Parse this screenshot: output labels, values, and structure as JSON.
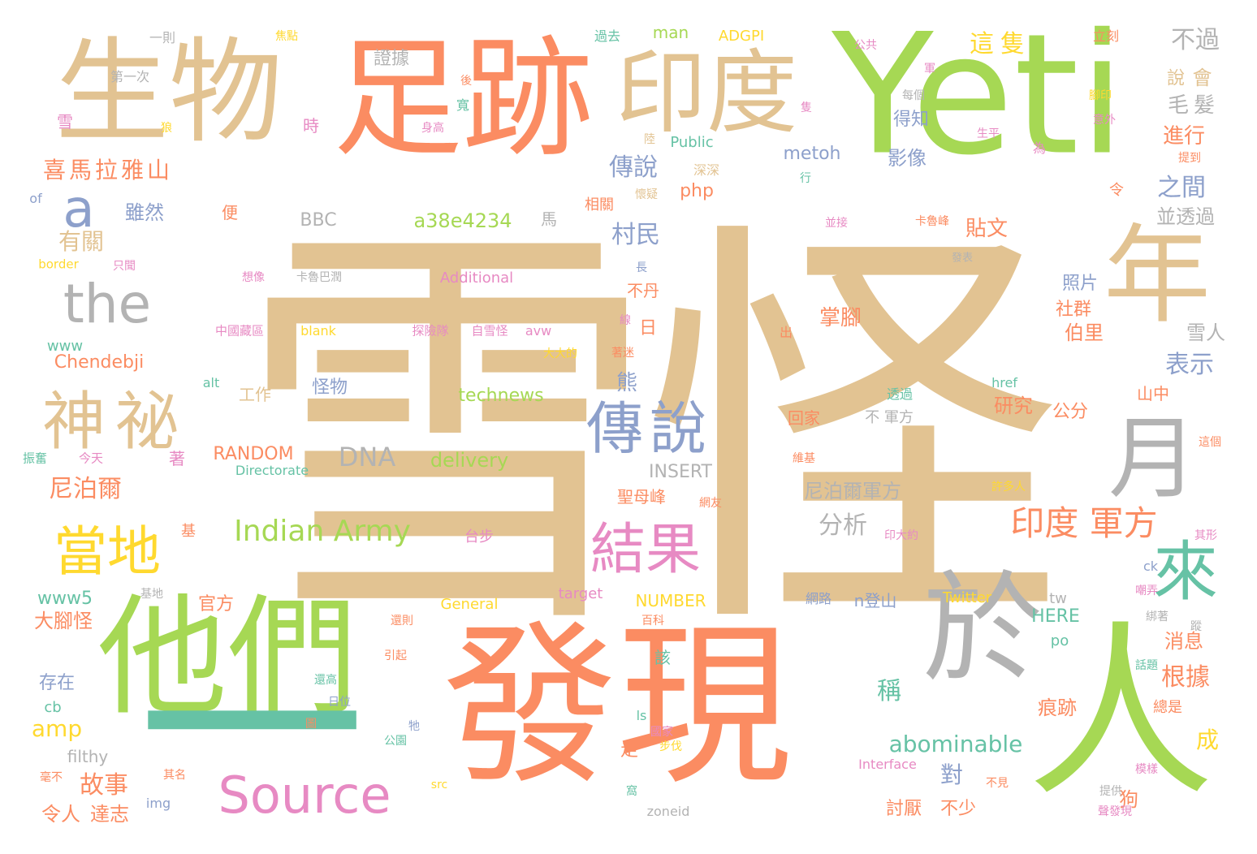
{
  "colors": {
    "tan": "#e2c392",
    "orange": "#fb8c62",
    "green": "#a6d854",
    "blue": "#8da0cb",
    "gray": "#b3b3b3",
    "pink": "#e78ac3",
    "teal": "#66c2a5",
    "yellow": "#ffd92f"
  },
  "words": [
    {
      "t": "雪怪",
      "c": "tan"
    },
    {
      "t": "Yeti",
      "c": "green"
    },
    {
      "t": "發現",
      "c": "orange"
    },
    {
      "t": "足跡",
      "c": "orange"
    },
    {
      "t": "生物",
      "c": "tan"
    },
    {
      "t": "他們",
      "c": "green"
    },
    {
      "t": "印度",
      "c": "tan"
    },
    {
      "t": "人",
      "c": "green"
    },
    {
      "t": "於",
      "c": "gray"
    },
    {
      "t": "年",
      "c": "tan"
    },
    {
      "t": "月",
      "c": "gray"
    },
    {
      "t": "一",
      "c": "teal"
    },
    {
      "t": "神祕",
      "c": "tan"
    },
    {
      "t": "傳說",
      "c": "blue"
    },
    {
      "t": "結果",
      "c": "pink"
    },
    {
      "t": "當地",
      "c": "yellow"
    },
    {
      "t": "Source",
      "c": "pink"
    },
    {
      "t": "the",
      "c": "gray"
    },
    {
      "t": "來",
      "c": "teal"
    },
    {
      "t": "a",
      "c": "blue"
    },
    {
      "t": "印度 軍方",
      "c": "orange"
    },
    {
      "t": "Indian Army",
      "c": "green"
    },
    {
      "t": "喜馬拉雅山",
      "c": "orange"
    },
    {
      "t": "DNA",
      "c": "gray"
    },
    {
      "t": "abominable",
      "c": "teal"
    },
    {
      "t": "證據",
      "c": "gray"
    },
    {
      "t": "這隻",
      "c": "yellow"
    },
    {
      "t": "不過",
      "c": "gray"
    },
    {
      "t": "會",
      "c": "tan"
    },
    {
      "t": "說",
      "c": "tan"
    },
    {
      "t": "毛髮",
      "c": "gray"
    },
    {
      "t": "進行",
      "c": "orange"
    },
    {
      "t": "之間",
      "c": "blue"
    },
    {
      "t": "並透過",
      "c": "gray"
    },
    {
      "t": "貼文",
      "c": "orange"
    },
    {
      "t": "照片",
      "c": "blue"
    },
    {
      "t": "社群",
      "c": "orange"
    },
    {
      "t": "伯里",
      "c": "orange"
    },
    {
      "t": "雪人",
      "c": "gray"
    },
    {
      "t": "表示",
      "c": "blue"
    },
    {
      "t": "研究",
      "c": "orange"
    },
    {
      "t": "公分",
      "c": "orange"
    },
    {
      "t": "山中",
      "c": "orange"
    },
    {
      "t": "尼泊爾軍方",
      "c": "gray"
    },
    {
      "t": "分析",
      "c": "gray"
    },
    {
      "t": "根據",
      "c": "orange"
    },
    {
      "t": "痕跡",
      "c": "orange"
    },
    {
      "t": "消息",
      "c": "orange"
    },
    {
      "t": "稱",
      "c": "teal"
    },
    {
      "t": "對",
      "c": "blue"
    },
    {
      "t": "討厭",
      "c": "orange"
    },
    {
      "t": "不少",
      "c": "orange"
    },
    {
      "t": "狗",
      "c": "orange"
    },
    {
      "t": "成",
      "c": "yellow"
    },
    {
      "t": "故事",
      "c": "orange"
    },
    {
      "t": "令人",
      "c": "orange"
    },
    {
      "t": "達志",
      "c": "orange"
    },
    {
      "t": "大腳怪",
      "c": "orange"
    },
    {
      "t": "存在",
      "c": "blue"
    },
    {
      "t": "官方",
      "c": "orange"
    },
    {
      "t": "尼泊爾",
      "c": "orange"
    },
    {
      "t": "有關",
      "c": "tan"
    },
    {
      "t": "雖然",
      "c": "blue"
    },
    {
      "t": "村民",
      "c": "blue"
    },
    {
      "t": "傳說",
      "c": "blue"
    },
    {
      "t": "影像",
      "c": "blue"
    },
    {
      "t": "得知",
      "c": "blue"
    },
    {
      "t": "metoh",
      "c": "blue"
    },
    {
      "t": "php",
      "c": "orange"
    },
    {
      "t": "a38e4234",
      "c": "green"
    },
    {
      "t": "BBC",
      "c": "gray"
    },
    {
      "t": "technews",
      "c": "green"
    },
    {
      "t": "delivery",
      "c": "green"
    },
    {
      "t": "INSERT",
      "c": "gray"
    },
    {
      "t": "RANDOM",
      "c": "orange"
    },
    {
      "t": "Directorate",
      "c": "teal"
    },
    {
      "t": "Chendebji",
      "c": "orange"
    },
    {
      "t": "www",
      "c": "teal"
    },
    {
      "t": "www5",
      "c": "teal"
    },
    {
      "t": "amp",
      "c": "yellow"
    },
    {
      "t": "cb",
      "c": "teal"
    },
    {
      "t": "filthy",
      "c": "gray"
    },
    {
      "t": "img",
      "c": "blue"
    },
    {
      "t": "man",
      "c": "green"
    },
    {
      "t": "ADGPI",
      "c": "yellow"
    },
    {
      "t": "Public",
      "c": "teal"
    },
    {
      "t": "Additional",
      "c": "pink"
    },
    {
      "t": "General",
      "c": "yellow"
    },
    {
      "t": "target",
      "c": "pink"
    },
    {
      "t": "NUMBER",
      "c": "yellow"
    },
    {
      "t": "Twitter",
      "c": "yellow"
    },
    {
      "t": "HERE",
      "c": "teal"
    },
    {
      "t": "tw",
      "c": "gray"
    },
    {
      "t": "po",
      "c": "teal"
    },
    {
      "t": "ck",
      "c": "blue"
    },
    {
      "t": "Interface",
      "c": "pink"
    },
    {
      "t": "zoneid",
      "c": "gray"
    },
    {
      "t": "src",
      "c": "yellow"
    },
    {
      "t": "href",
      "c": "teal"
    },
    {
      "t": "blank",
      "c": "yellow"
    },
    {
      "t": "avw",
      "c": "pink"
    },
    {
      "t": "alt",
      "c": "teal"
    },
    {
      "t": "border",
      "c": "yellow"
    },
    {
      "t": "of",
      "c": "blue"
    },
    {
      "t": "ls",
      "c": "teal"
    },
    {
      "t": "掌腳",
      "c": "orange"
    },
    {
      "t": "不丹",
      "c": "orange"
    },
    {
      "t": "日",
      "c": "orange"
    },
    {
      "t": "熊",
      "c": "blue"
    },
    {
      "t": "怪物",
      "c": "blue"
    },
    {
      "t": "工作",
      "c": "tan"
    },
    {
      "t": "著",
      "c": "pink"
    },
    {
      "t": "基",
      "c": "orange"
    },
    {
      "t": "便",
      "c": "orange"
    },
    {
      "t": "馬",
      "c": "gray"
    },
    {
      "t": "相關",
      "c": "orange"
    },
    {
      "t": "時",
      "c": "pink"
    },
    {
      "t": "雪",
      "c": "pink"
    },
    {
      "t": "第一次",
      "c": "gray"
    },
    {
      "t": "一則",
      "c": "gray"
    },
    {
      "t": "焦點",
      "c": "yellow"
    },
    {
      "t": "過去",
      "c": "teal"
    },
    {
      "t": "公共",
      "c": "pink"
    },
    {
      "t": "立刻",
      "c": "orange"
    },
    {
      "t": "軍",
      "c": "pink"
    },
    {
      "t": "每個",
      "c": "gray"
    },
    {
      "t": "腳印",
      "c": "yellow"
    },
    {
      "t": "意外",
      "c": "pink"
    },
    {
      "t": "生平",
      "c": "pink"
    },
    {
      "t": "為",
      "c": "pink"
    },
    {
      "t": "提到",
      "c": "orange"
    },
    {
      "t": "令",
      "c": "orange"
    },
    {
      "t": "卡魯峰",
      "c": "orange"
    },
    {
      "t": "發表",
      "c": "gray"
    },
    {
      "t": "並接",
      "c": "pink"
    },
    {
      "t": "行",
      "c": "teal"
    },
    {
      "t": "深深",
      "c": "tan"
    },
    {
      "t": "懷疑",
      "c": "tan"
    },
    {
      "t": "陸",
      "c": "tan"
    },
    {
      "t": "隻",
      "c": "pink"
    },
    {
      "t": "身高",
      "c": "pink"
    },
    {
      "t": "寬",
      "c": "teal"
    },
    {
      "t": "後",
      "c": "orange"
    },
    {
      "t": "狼",
      "c": "yellow"
    },
    {
      "t": "長",
      "c": "blue"
    },
    {
      "t": "線",
      "c": "pink"
    },
    {
      "t": "出",
      "c": "orange"
    },
    {
      "t": "著迷",
      "c": "orange"
    },
    {
      "t": "大大的",
      "c": "yellow"
    },
    {
      "t": "自雪怪",
      "c": "pink"
    },
    {
      "t": "探險隊",
      "c": "pink"
    },
    {
      "t": "中國藏區",
      "c": "pink"
    },
    {
      "t": "想像",
      "c": "pink"
    },
    {
      "t": "卡魯巴潤",
      "c": "gray"
    },
    {
      "t": "只聞",
      "c": "pink"
    },
    {
      "t": "振奮",
      "c": "teal"
    },
    {
      "t": "今天",
      "c": "pink"
    },
    {
      "t": "聖母峰",
      "c": "orange"
    },
    {
      "t": "網友",
      "c": "orange"
    },
    {
      "t": "台步",
      "c": "pink"
    },
    {
      "t": "印大約",
      "c": "pink"
    },
    {
      "t": "其形",
      "c": "pink"
    },
    {
      "t": "嘲弄",
      "c": "pink"
    },
    {
      "t": "網路",
      "c": "blue"
    },
    {
      "t": "n登山",
      "c": "blue"
    },
    {
      "t": "基地",
      "c": "gray"
    },
    {
      "t": "還則",
      "c": "orange"
    },
    {
      "t": "百科",
      "c": "orange"
    },
    {
      "t": "引起",
      "c": "orange"
    },
    {
      "t": "還高",
      "c": "teal"
    },
    {
      "t": "日位",
      "c": "blue"
    },
    {
      "t": "介",
      "c": "orange"
    },
    {
      "t": "圖",
      "c": "orange"
    },
    {
      "t": "牠",
      "c": "blue"
    },
    {
      "t": "國家",
      "c": "pink"
    },
    {
      "t": "公園",
      "c": "teal"
    },
    {
      "t": "步伐",
      "c": "yellow"
    },
    {
      "t": "毫不",
      "c": "orange"
    },
    {
      "t": "其名",
      "c": "orange"
    },
    {
      "t": "窩",
      "c": "teal"
    },
    {
      "t": "提供",
      "c": "gray"
    },
    {
      "t": "聲發現",
      "c": "pink"
    },
    {
      "t": "不見",
      "c": "orange"
    },
    {
      "t": "模樣",
      "c": "pink"
    },
    {
      "t": "蹤",
      "c": "gray"
    },
    {
      "t": "總是",
      "c": "orange"
    },
    {
      "t": "綁著",
      "c": "gray"
    },
    {
      "t": "話題",
      "c": "teal"
    },
    {
      "t": "許多人",
      "c": "yellow"
    },
    {
      "t": "這個",
      "c": "orange"
    },
    {
      "t": "維基",
      "c": "orange"
    },
    {
      "t": "回家",
      "c": "orange"
    },
    {
      "t": "不 軍方",
      "c": "gray"
    },
    {
      "t": "透過",
      "c": "teal"
    },
    {
      "t": "走",
      "c": "orange"
    },
    {
      "t": "該",
      "c": "teal"
    }
  ]
}
